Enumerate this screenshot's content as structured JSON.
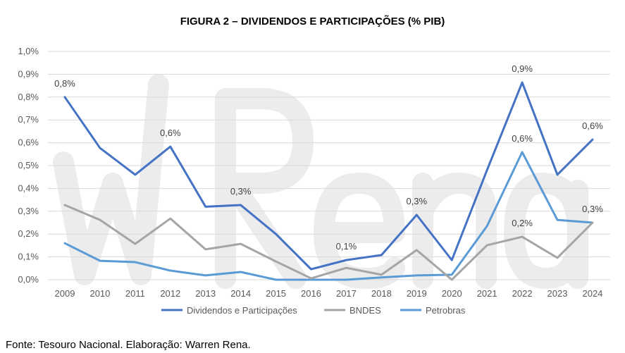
{
  "title": "FIGURA 2 – DIVIDENDOS E PARTICIPAÇÕES (% PIB)",
  "source": "Fonte: Tesouro Nacional. Elaboração: Warren Rena.",
  "watermark": "wRena",
  "chart_data": {
    "type": "line",
    "title": "FIGURA 2 – DIVIDENDOS E PARTICIPAÇÕES (% PIB)",
    "xlabel": "",
    "ylabel": "",
    "categories": [
      "2009",
      "2010",
      "2011",
      "2012",
      "2013",
      "2014",
      "2015",
      "2016",
      "2017",
      "2018",
      "2019",
      "2020",
      "2021",
      "2022",
      "2023",
      "2024"
    ],
    "ylim": [
      0,
      1.0
    ],
    "yticks": [
      "0,0%",
      "0,1%",
      "0,2%",
      "0,3%",
      "0,4%",
      "0,5%",
      "0,6%",
      "0,7%",
      "0,8%",
      "0,9%",
      "1,0%"
    ],
    "grid": true,
    "legend": "bottom",
    "series": [
      {
        "name": "Dividendos e Participações",
        "color": "#4472C4",
        "values": [
          0.8,
          0.577,
          0.46,
          0.583,
          0.32,
          0.327,
          0.2,
          0.046,
          0.086,
          0.108,
          0.284,
          0.086,
          0.48,
          0.864,
          0.46,
          0.614
        ],
        "labels": [
          {
            "index": 0,
            "text": "0,8%"
          },
          {
            "index": 3,
            "text": "0,6%"
          },
          {
            "index": 5,
            "text": "0,3%"
          },
          {
            "index": 8,
            "text": "0,1%"
          },
          {
            "index": 10,
            "text": "0,3%"
          },
          {
            "index": 13,
            "text": "0,9%"
          },
          {
            "index": 15,
            "text": "0,6%"
          }
        ]
      },
      {
        "name": "BNDES",
        "color": "#A5A5A5",
        "values": [
          0.327,
          0.262,
          0.157,
          0.268,
          0.133,
          0.157,
          0.08,
          0.006,
          0.052,
          0.022,
          0.13,
          0.0,
          0.151,
          0.188,
          0.096,
          0.25
        ],
        "labels": [
          {
            "index": 13,
            "text": "0,2%"
          }
        ]
      },
      {
        "name": "Petrobras",
        "color": "#5B9BD5",
        "values": [
          0.16,
          0.083,
          0.077,
          0.04,
          0.019,
          0.034,
          0.0,
          0.0,
          0.0,
          0.01,
          0.019,
          0.022,
          0.235,
          0.559,
          0.262,
          0.25
        ],
        "labels": [
          {
            "index": 13,
            "text": "0,6%"
          },
          {
            "index": 15,
            "text": "0,3%"
          }
        ]
      }
    ]
  }
}
